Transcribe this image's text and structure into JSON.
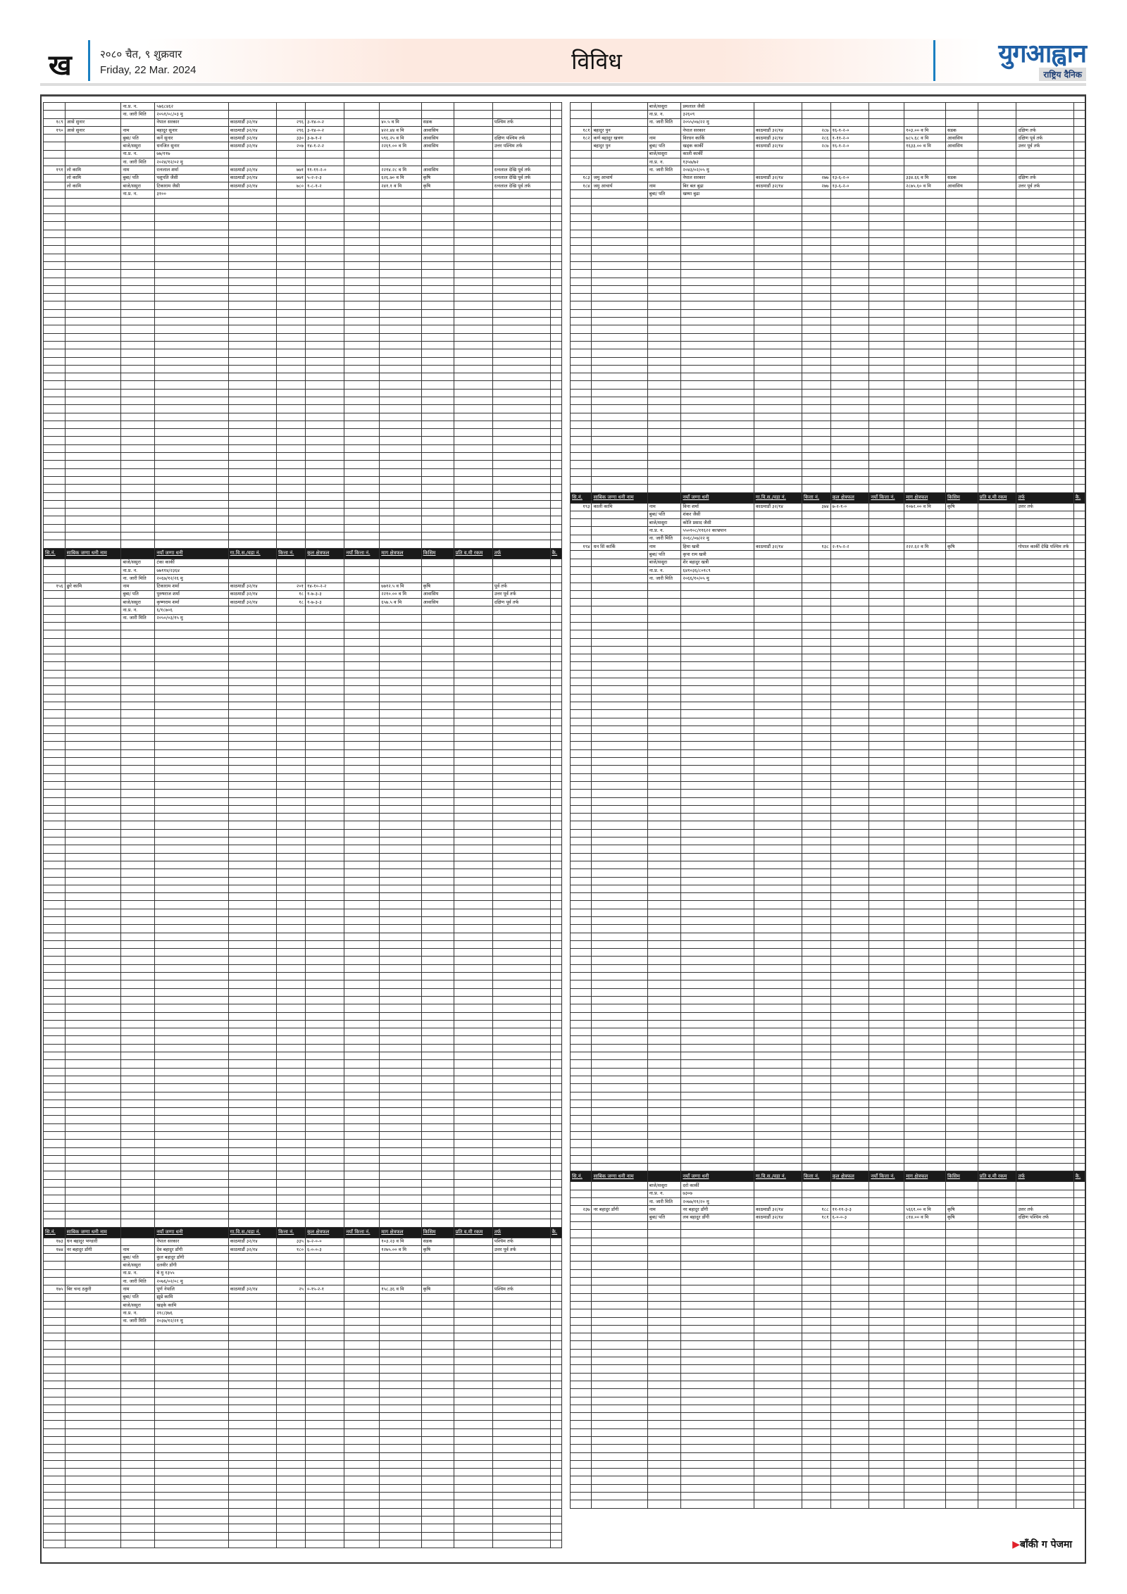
{
  "header": {
    "page_letter": "ख",
    "date_np": "२०८० चैत, ९ शुक्रवार",
    "date_en": "Friday, 22 Mar. 2024",
    "section": "विविध",
    "logo_text": "युगआह्वान",
    "logo_sub": "राष्ट्रिय दैनिक",
    "accent": "#1a7fc1",
    "logo_color": "#1f5fa5"
  },
  "table_headers": [
    "सि.नं.",
    "साबिक जग्गा धनी नाम",
    "",
    "नयाँ जग्गा धनी",
    "गा.वि.स./वडा नं.",
    "कित्ता नं.",
    "कुल क्षेत्रफल",
    "नयाँ कित्ता नं.",
    "माग क्षेत्रफल",
    "किसिम",
    "प्रति व.मी रकम",
    "तर्फ",
    "कै."
  ],
  "left": {
    "s1": [
      [
        "",
        "",
        "ना.प्र. न.",
        "५७६८४६२",
        "",
        "",
        "",
        "",
        "",
        "",
        "",
        ""
      ],
      [
        "",
        "",
        "ना. जारी मिति",
        "२०५१/०८/०३ मु",
        "",
        "",
        "",
        "",
        "",
        "",
        "",
        ""
      ],
      [
        "१८९",
        "आसे सुनार",
        "",
        "नेपाल सरकार",
        "काठमाडौं ३२/१४",
        "२९६",
        "३-१४-०-२",
        "",
        "४०.५ व मि",
        "सडक",
        "",
        "पश्चिम तर्फ"
      ],
      [
        "१९०",
        "आसे सुनार",
        "नाम",
        "बहादुर सुनार",
        "काठमाडौं ३२/१४",
        "२९६",
        "३-१४-०-२",
        "",
        "४२२.४४ व मि",
        "आवासिय",
        "",
        ""
      ],
      [
        "",
        "",
        "बुबा/ पति",
        "कर्ने सुनार",
        "काठमाडौं ३२/१४",
        "३३०",
        "३-७-१-२",
        "",
        "५९६.२५ व मि",
        "आवासिय",
        "",
        "दक्षिण पश्चिम तर्फ"
      ],
      [
        "",
        "",
        "बाजे/ससुरा",
        "धनजित सुनार",
        "काठमाडौं ३२/१४",
        "२०७",
        "१४-१-२-२",
        "",
        "२२६९.०० व मि",
        "आवासिय",
        "",
        "उत्तर पश्चिम तर्फ"
      ],
      [
        "",
        "",
        "ना.प्र. न.",
        "७७/११७",
        "",
        "",
        "",
        "",
        "",
        "",
        "",
        ""
      ],
      [
        "",
        "",
        "ना. जारी मिति",
        "२०२४/१२/०२ मु",
        "",
        "",
        "",
        "",
        "",
        "",
        "",
        ""
      ],
      [
        "१९१",
        "लो कामि",
        "नाम",
        "रत्नलाल शर्मा",
        "काठमाडौं ३२/१४",
        "७७१",
        "११-११-२-०",
        "",
        "२२१४.२८ व मि",
        "आवासिय",
        "",
        "रत्नलाल देखि पूर्व तर्फ"
      ],
      [
        "",
        "लो कामि",
        "बुबा/ पति",
        "पशुपति जैसी",
        "काठमाडौं ३२/१४",
        "७७१",
        "५-२-२-३",
        "",
        "६२६.७० व मि",
        "कृषि",
        "",
        "रत्नलाल देखि पूर्व तर्फ"
      ],
      [
        "",
        "लो कामि",
        "बाजे/ससुरा",
        "टिकाराम जैसी",
        "काठमाडौं ३२/१४",
        "७८०",
        "१-८-१-२",
        "",
        "२४१.१ व मि",
        "कृषि",
        "",
        "रत्नलाल देखि पूर्व तर्फ"
      ],
      [
        "",
        "",
        "ना.प्र. न.",
        "३१००",
        "",
        "",
        "",
        "",
        "",
        "",
        "",
        ""
      ]
    ],
    "s2": [
      [
        "",
        "",
        "बाजे/ससुरा",
        "टंका कार्की",
        "",
        "",
        "",
        "",
        "",
        "",
        "",
        ""
      ],
      [
        "",
        "",
        "ना.प्र. न.",
        "७७११४/२३६४",
        "",
        "",
        "",
        "",
        "",
        "",
        "",
        ""
      ],
      [
        "",
        "",
        "ना. जारी मिति",
        "२०६७/१२/२६ मु",
        "",
        "",
        "",
        "",
        "",
        "",
        "",
        ""
      ],
      [
        "१५६",
        "छुरे कामि",
        "नाम",
        "टिकाराम शर्मा",
        "काठमाडौं ३२/१४",
        "२०१",
        "१४-१०-२-२",
        "",
        "७७१२.५ व मि",
        "कृषि",
        "",
        "पूर्व तर्फ"
      ],
      [
        "",
        "",
        "बुबा/ पति",
        "पुरुषराज शर्मा",
        "काठमाडौं ३२/१४",
        "१८",
        "१-७-३-३",
        "",
        "२२१०.०० व मि",
        "आवासिय",
        "",
        "उत्तर पूर्व तर्फ"
      ],
      [
        "",
        "",
        "बाजे/ससुरा",
        "कृष्णराम शर्मा",
        "काठमाडौं ३२/१४",
        "१८",
        "१-७-३-३",
        "",
        "६५७.५ व मि",
        "आवासिय",
        "",
        "दक्षिण पूर्व तर्फ"
      ],
      [
        "",
        "",
        "ना.प्र. न.",
        "६/१८७०६",
        "",
        "",
        "",
        "",
        "",
        "",
        "",
        ""
      ],
      [
        "",
        "",
        "ना. जारी मिति",
        "२०५०/०३/१५ मु",
        "",
        "",
        "",
        "",
        "",
        "",
        "",
        ""
      ]
    ],
    "s3": [
      [
        "१७३",
        "धन बहादुर भण्डारी",
        "",
        "नेपाल सरकार",
        "काठमाडौं ३२/१४",
        "३३५",
        "७-२-०-०",
        "",
        "१०३.२३ व मि",
        "सडक",
        "",
        "पश्चिम तर्फ"
      ],
      [
        "१७४",
        "नर बहादुर डाँगी",
        "नाम",
        "देव बहादुर डाँगी",
        "काठमाडौं ३२/१४",
        "१८०",
        "६-०-०-३",
        "",
        "१२७५.०० व मि",
        "कृषि",
        "",
        "उत्तर पूर्व तर्फ"
      ],
      [
        "",
        "",
        "बुबा/ पति",
        "कुल बहादुर डाँगी",
        "",
        "",
        "",
        "",
        "",
        "",
        "",
        ""
      ],
      [
        "",
        "",
        "बाजे/ससुरा",
        "दलवीर डाँगी",
        "",
        "",
        "",
        "",
        "",
        "",
        "",
        ""
      ],
      [
        "",
        "",
        "ना.प्र. न.",
        "बे मु १३५५",
        "",
        "",
        "",
        "",
        "",
        "",
        "",
        ""
      ],
      [
        "",
        "",
        "ना. जारी मिति",
        "२०७६/०२/०८ मु",
        "",
        "",
        "",
        "",
        "",
        "",
        "",
        ""
      ],
      [
        "१७५",
        "बिर चन्द ठकुरी",
        "नाम",
        "पूर्ण नेपालि",
        "काठमाडौं ३२/१४",
        "२५",
        "०-१५-२-१",
        "",
        "१५८.३६ व मि",
        "कृषि",
        "",
        "पश्चिम तर्फ"
      ],
      [
        "",
        "",
        "बुबा/ पति",
        "झुम्रे कामि",
        "",
        "",
        "",
        "",
        "",
        "",
        "",
        ""
      ],
      [
        "",
        "",
        "बाजे/ससुरा",
        "खड्के कामि",
        "",
        "",
        "",
        "",
        "",
        "",
        "",
        ""
      ],
      [
        "",
        "",
        "ना.प्र. न.",
        "२१८/३७६",
        "",
        "",
        "",
        "",
        "",
        "",
        "",
        ""
      ],
      [
        "",
        "",
        "ना. जारी मिति",
        "२०३७/१२/२१ मु",
        "",
        "",
        "",
        "",
        "",
        "",
        "",
        ""
      ]
    ]
  },
  "right": {
    "s1": [
      [
        "",
        "",
        "बाजे/ससुरा",
        "प्रमलाल जैसी",
        "",
        "",
        "",
        "",
        "",
        "",
        "",
        ""
      ],
      [
        "",
        "",
        "ना.प्र. न.",
        "३२६०९",
        "",
        "",
        "",
        "",
        "",
        "",
        "",
        ""
      ],
      [
        "",
        "",
        "ना. जारी मिति",
        "२०५५/०७/२२ मु",
        "",
        "",
        "",
        "",
        "",
        "",
        "",
        ""
      ],
      [
        "१८१",
        "बहादुर पुन",
        "",
        "नेपाल सरकार",
        "काठमाडौं ३२/१४",
        "२८७",
        "१६-१-२-०",
        "",
        "१०३.०० व मि",
        "सडक",
        "",
        "दक्षिण तर्फ"
      ],
      [
        "१८२",
        "कर्ण बहादुर खत्रण",
        "नाम",
        "विरधन कार्कि",
        "काठमाडौं ३२/१४",
        "२८६",
        "१-११-२-०",
        "",
        "७८५.६८ व मि",
        "आवासिय",
        "",
        "दक्षिण पूर्व तर्फ"
      ],
      [
        "",
        "बहादुर पुन",
        "बुबा/ पति",
        "खड्क कार्की",
        "काठमाडौं ३२/१४",
        "२८७",
        "१६-१-२-०",
        "",
        "१६३३.०० व मि",
        "आवासिय",
        "",
        "उत्तर पूर्व तर्फ"
      ],
      [
        "",
        "",
        "बाजे/ससुरा",
        "काली कार्की",
        "",
        "",
        "",
        "",
        "",
        "",
        "",
        ""
      ],
      [
        "",
        "",
        "ना.प्र. न.",
        "१३५७/७२",
        "",
        "",
        "",
        "",
        "",
        "",
        "",
        ""
      ],
      [
        "",
        "",
        "ना. जारी मिति",
        "२०४३/०२/०५ मु",
        "",
        "",
        "",
        "",
        "",
        "",
        "",
        ""
      ],
      [
        "१८३",
        "जमु आचार्य",
        "",
        "नेपाल सरकार",
        "काठमाडौं ३२/१४",
        "२७७",
        "१३-६-२-०",
        "",
        "३३४.६६ व मि",
        "सडक",
        "",
        "दक्षिण तर्फ"
      ],
      [
        "१८४",
        "जमु आचार्य",
        "नाम",
        "बिर बल बुढा",
        "काठमाडौं ३२/१४",
        "२७७",
        "१३-६-२-०",
        "",
        "२८७५.६० व मि",
        "आवासिय",
        "",
        "उत्तर पूर्व तर्फ"
      ],
      [
        "",
        "",
        "बुबा/ पति",
        "खम्मा बुढा",
        "",
        "",
        "",
        "",
        "",
        "",
        "",
        ""
      ]
    ],
    "s2": [
      [
        "१९३",
        "काली कामि",
        "नाम",
        "विना शर्मा",
        "काठमाडौं ३२/१४",
        "३७४",
        "७-२-१-०",
        "",
        "१०७२.०० व मि",
        "कृषि",
        "",
        "उत्तर तर्फ"
      ],
      [
        "",
        "",
        "बुबा/ पति",
        "शंकर जैसी",
        "",
        "",
        "",
        "",
        "",
        "",
        "",
        ""
      ],
      [
        "",
        "",
        "बाजे/ससुरा",
        "कोति प्रसाद जैसी",
        "",
        "",
        "",
        "",
        "",
        "",
        "",
        ""
      ],
      [
        "",
        "",
        "ना.प्र. न.",
        "५५०१०८/११६२२ काभ्रपान",
        "",
        "",
        "",
        "",
        "",
        "",
        "",
        ""
      ],
      [
        "",
        "",
        "ना. जारी मिति",
        "२०६८/०७/२२ मु",
        "",
        "",
        "",
        "",
        "",
        "",
        "",
        ""
      ],
      [
        "१९४",
        "धन सिं कार्कि",
        "नाम",
        "हिमा खत्री",
        "काठमाडौं ३२/१४",
        "१३८",
        "२-१५-२-२",
        "",
        "२२२.६२ व मि",
        "कृषि",
        "",
        "गोपाल कार्की देखि पश्चिम तर्फ"
      ],
      [
        "",
        "",
        "बुबा/ पति",
        "कृपा राम खत्री",
        "",
        "",
        "",
        "",
        "",
        "",
        "",
        ""
      ],
      [
        "",
        "",
        "बाजे/ससुरा",
        "शेर बहादुर खत्री",
        "",
        "",
        "",
        "",
        "",
        "",
        "",
        ""
      ],
      [
        "",
        "",
        "ना.प्र. न.",
        "६४१०३६/८०१८९",
        "",
        "",
        "",
        "",
        "",
        "",
        "",
        ""
      ],
      [
        "",
        "",
        "ना. जारी मिति",
        "२०६६/१०/०५ मु",
        "",
        "",
        "",
        "",
        "",
        "",
        "",
        ""
      ]
    ],
    "s3": [
      [
        "",
        "",
        "बाजे/ससुरा",
        "दरो कार्की",
        "",
        "",
        "",
        "",
        "",
        "",
        "",
        ""
      ],
      [
        "",
        "",
        "ना.प्र. न.",
        "७३०७",
        "",
        "",
        "",
        "",
        "",
        "",
        "",
        ""
      ],
      [
        "",
        "",
        "ना. जारी मिति",
        "२०७७/११/२० मु",
        "",
        "",
        "",
        "",
        "",
        "",
        "",
        ""
      ],
      [
        "२३७",
        "नर बहादुर डाँगी",
        "नाम",
        "नर बहादुर डाँगी",
        "काठमाडौं ३२/१४",
        "१८८",
        "११-११-३-३",
        "",
        "५६६१.०० व मि",
        "कृषि",
        "",
        "उत्तर तर्फ"
      ],
      [
        "",
        "",
        "बुबा/ पति",
        "लव बहादुर डाँगी",
        "काठमाडौं ३२/१४",
        "१८१",
        "६-०-०-३",
        "",
        "८१४.०० व मि",
        "कृषि",
        "",
        "दक्षिण पश्चिम तर्फ"
      ]
    ]
  },
  "footer": {
    "continued": "बाँकी ग पेजमा"
  }
}
